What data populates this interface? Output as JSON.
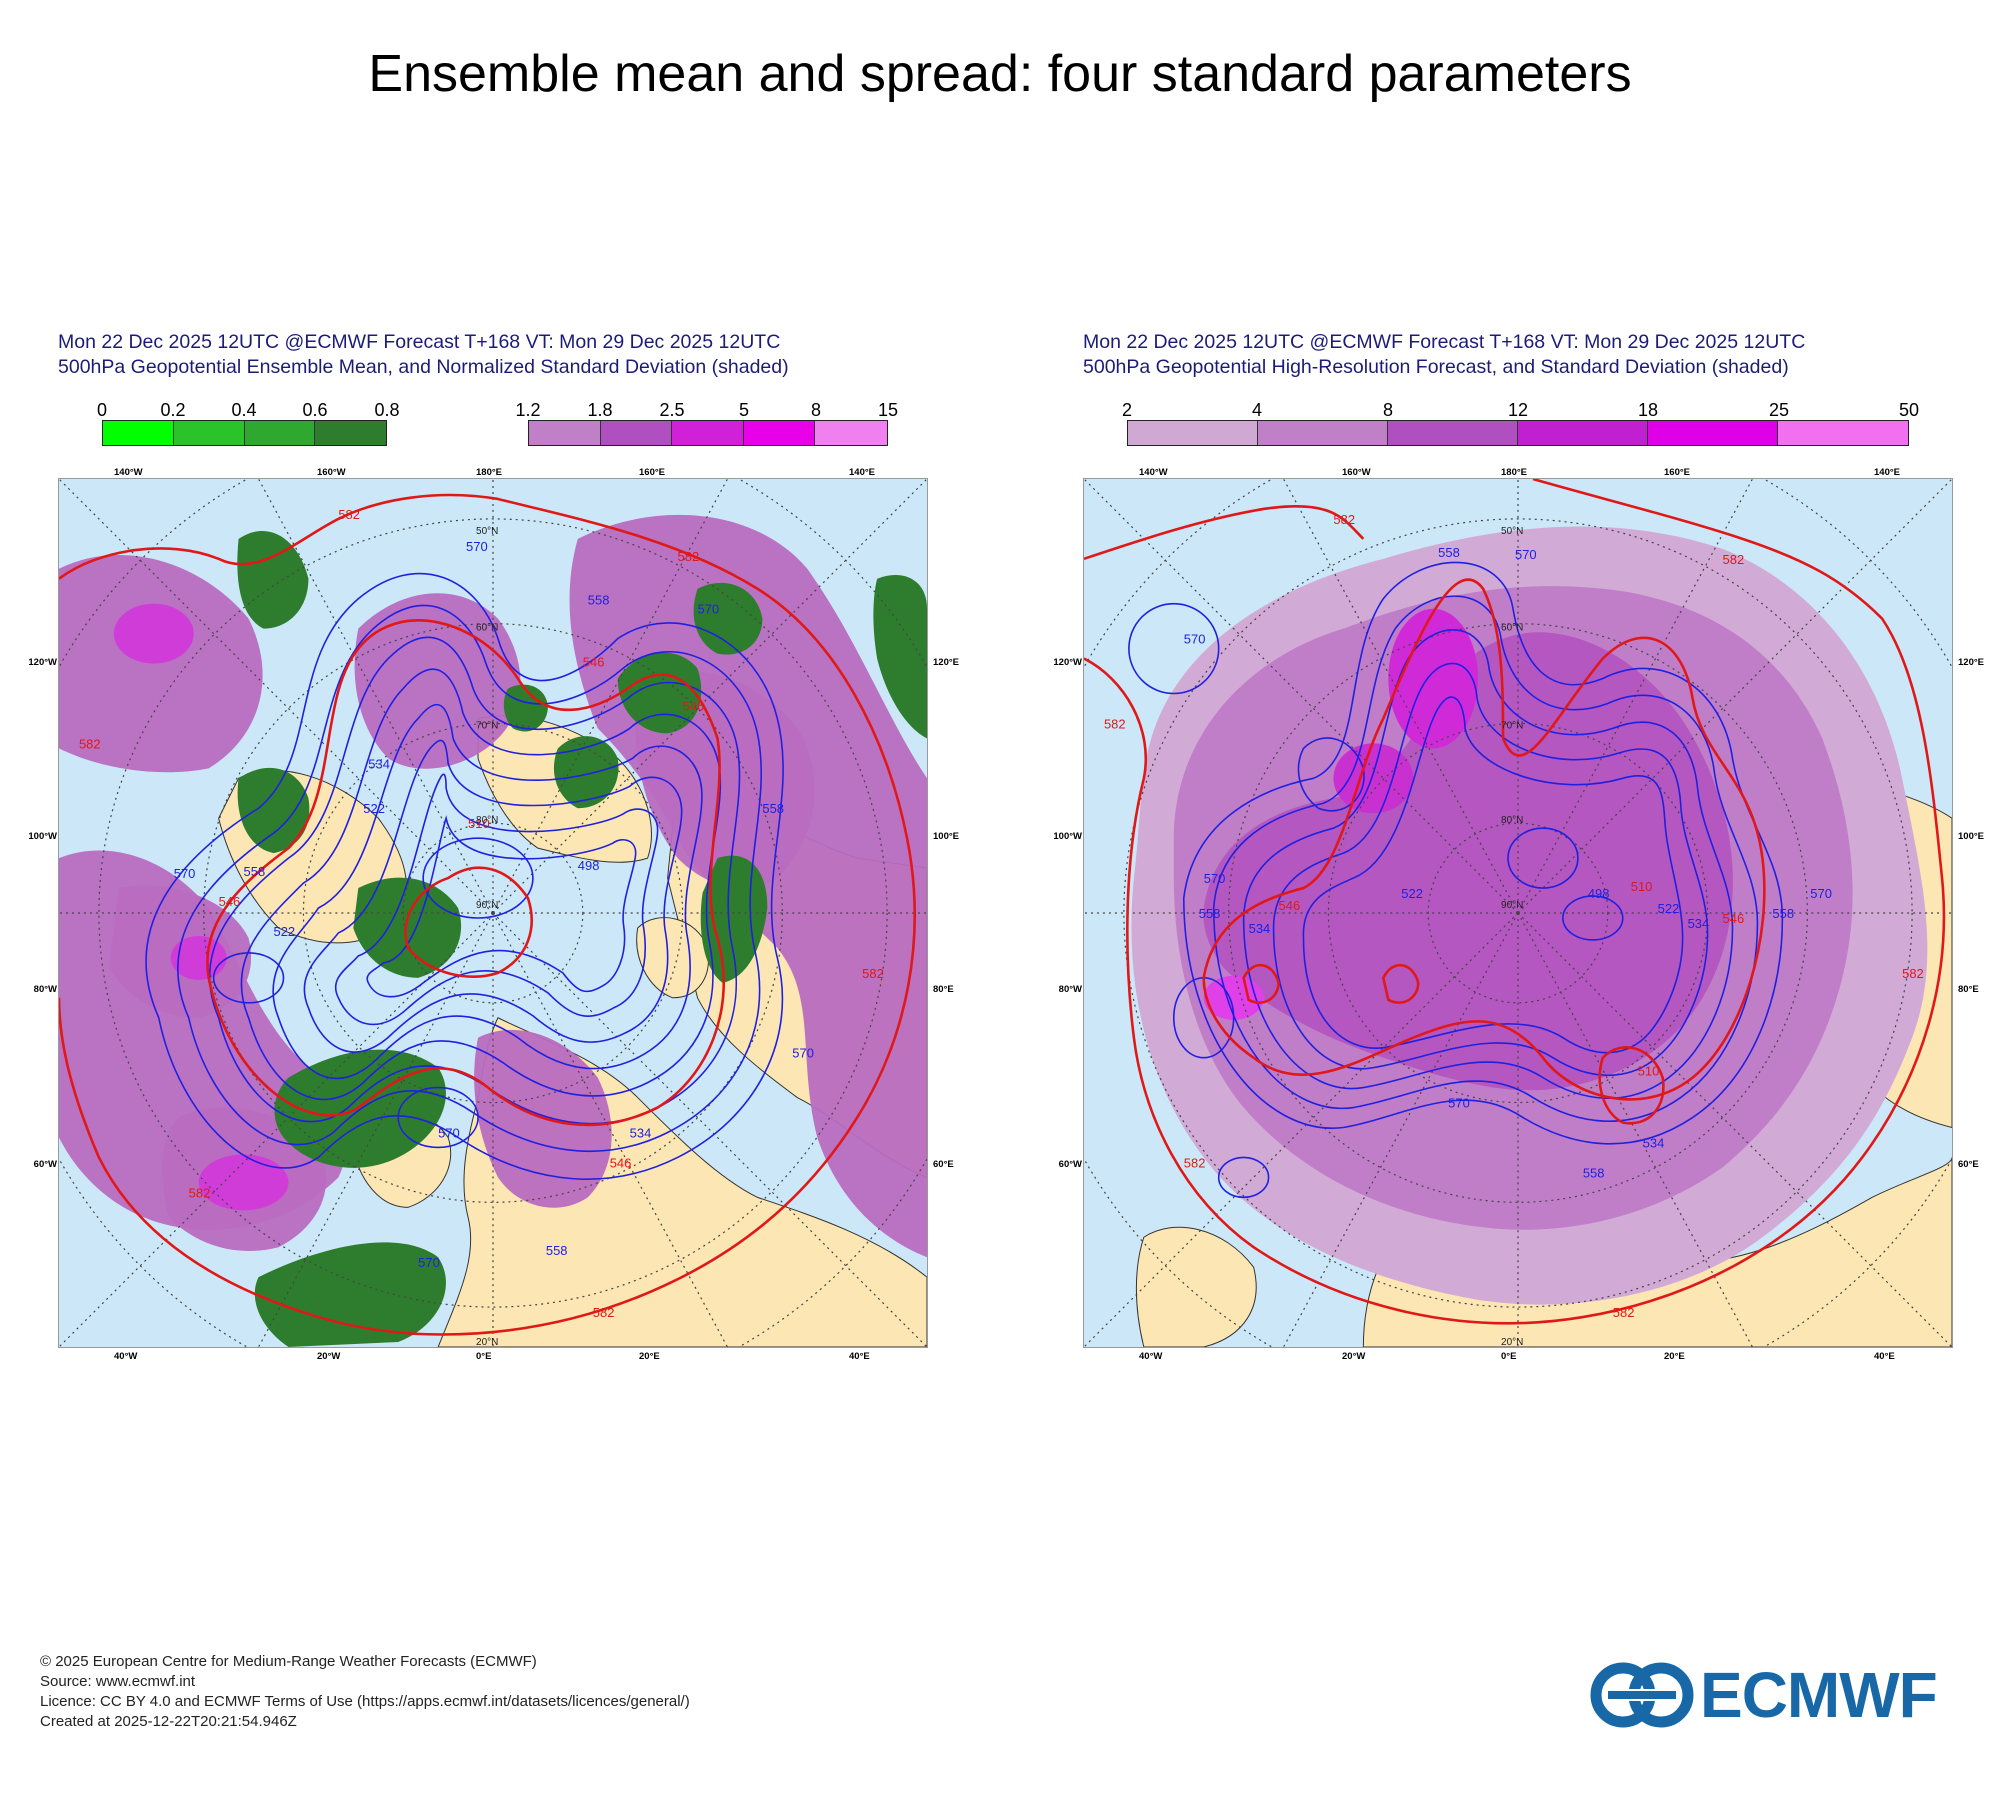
{
  "title": "Ensemble mean and spread: four standard parameters",
  "panels": [
    {
      "title_line1": "Mon 22 Dec 2025 12UTC @ECMWF Forecast T+168 VT: Mon 29 Dec 2025 12UTC",
      "title_line2": "500hPa Geopotential Ensemble Mean, and Normalized Standard Deviation (shaded)",
      "colorbars": [
        {
          "labels": [
            "0",
            "0.2",
            "0.4",
            "0.6",
            "0.8"
          ],
          "colors": [
            "#00ff00",
            "#2ac42a",
            "#2ea82e",
            "#2e7d2e"
          ]
        },
        {
          "labels": [
            "1.2",
            "1.8",
            "2.5",
            "5",
            "8",
            "15"
          ],
          "colors": [
            "#c080c8",
            "#b050c0",
            "#d020d8",
            "#e800e8",
            "#f080f0"
          ]
        }
      ],
      "lon_labels_top": [
        "140°W",
        "160°W",
        "180°E",
        "160°E",
        "140°E"
      ],
      "lon_labels_bottom": [
        "40°W",
        "20°W",
        "0°E",
        "20°E",
        "40°E"
      ],
      "lon_labels_left": [
        "120°W",
        "100°W",
        "80°W",
        "60°W"
      ],
      "lon_labels_right": [
        "120°E",
        "100°E",
        "80°E",
        "60°E"
      ],
      "contour_labels": [
        "582",
        "570",
        "558",
        "546",
        "534",
        "522",
        "510",
        "498"
      ]
    },
    {
      "title_line1": "Mon 22 Dec 2025 12UTC @ECMWF Forecast T+168 VT: Mon 29 Dec 2025 12UTC",
      "title_line2": "500hPa Geopotential High-Resolution Forecast, and Standard Deviation (shaded)",
      "colorbars": [
        {
          "labels": [
            "2",
            "4",
            "8",
            "12",
            "18",
            "25",
            "50"
          ],
          "colors": [
            "#d0a8d4",
            "#c080c8",
            "#b050c0",
            "#c020d0",
            "#e000e8",
            "#f070f0"
          ]
        }
      ],
      "lon_labels_top": [
        "140°W",
        "160°W",
        "180°E",
        "160°E",
        "140°E"
      ],
      "lon_labels_bottom": [
        "40°W",
        "20°W",
        "0°E",
        "20°E",
        "40°E"
      ],
      "lon_labels_left": [
        "120°W",
        "100°W",
        "80°W",
        "60°W"
      ],
      "lon_labels_right": [
        "120°E",
        "100°E",
        "80°E",
        "60°E"
      ],
      "contour_labels": [
        "582",
        "570",
        "558",
        "546",
        "534",
        "522",
        "510",
        "498"
      ]
    }
  ],
  "footer": {
    "line1": "© 2025 European Centre for Medium-Range Weather Forecasts (ECMWF)",
    "line2": "Source: www.ecmwf.int",
    "line3": "Licence: CC BY 4.0 and ECMWF Terms of Use (https://apps.ecmwf.int/datasets/licences/general/)",
    "line4": "Created at 2025-12-22T20:21:54.946Z"
  },
  "logo": {
    "text": "ECMWF",
    "color": "#1868a8"
  }
}
